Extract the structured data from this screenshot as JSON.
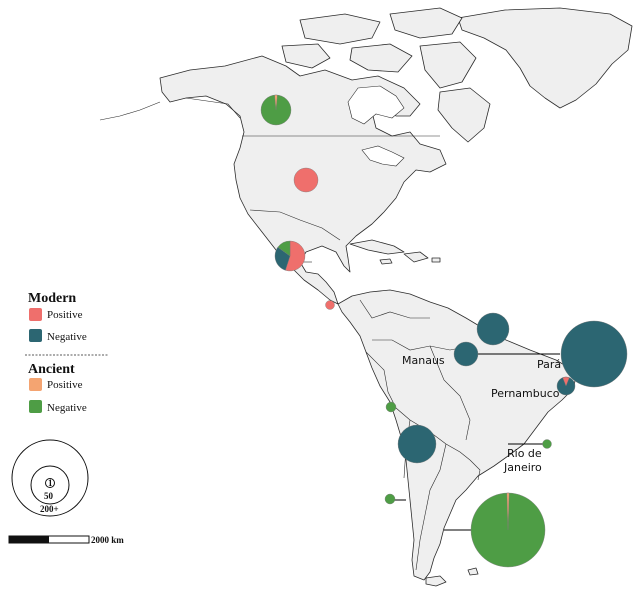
{
  "colors": {
    "modern_positive": "#ef6f6c",
    "modern_negative": "#2c6672",
    "ancient_positive": "#f4a471",
    "ancient_negative": "#4e9d45"
  },
  "legend": {
    "modern_title": "Modern",
    "modern_positive": "Positive",
    "modern_negative": "Negative",
    "ancient_title": "Ancient",
    "ancient_positive": "Positive",
    "ancient_negative": "Negative"
  },
  "size_legend": {
    "small": "1",
    "medium": "50",
    "large": "200+"
  },
  "scale_bar": {
    "label": "2000 km"
  },
  "place_labels": {
    "manaus": "Manaus",
    "para": "Pará",
    "pernambuco": "Pernambuco",
    "rio_line1": "Rio de",
    "rio_line2": "Janeiro"
  },
  "sites": [
    {
      "id": "canada",
      "positive_fraction": 0.03,
      "group": "ancient"
    },
    {
      "id": "usa",
      "positive_fraction": 1.0,
      "group": "modern"
    },
    {
      "id": "mexico-modern",
      "positive_fraction": 0.55,
      "group": "modern"
    },
    {
      "id": "mexico-ancient",
      "positive_fraction": 0.0,
      "group": "ancient"
    },
    {
      "id": "central-america",
      "positive_fraction": 1.0,
      "group": "modern"
    },
    {
      "id": "guianas",
      "positive_fraction": 0.0,
      "group": "modern"
    },
    {
      "id": "manaus",
      "positive_fraction": 0.0,
      "group": "modern"
    },
    {
      "id": "para",
      "positive_fraction": 0.0,
      "group": "modern"
    },
    {
      "id": "pernambuco",
      "positive_fraction": 0.12,
      "group": "modern"
    },
    {
      "id": "peru",
      "positive_fraction": 0.0,
      "group": "ancient"
    },
    {
      "id": "bolivia",
      "positive_fraction": 0.0,
      "group": "modern"
    },
    {
      "id": "rio-de-janeiro",
      "positive_fraction": 0.0,
      "group": "ancient"
    },
    {
      "id": "chile",
      "positive_fraction": 0.0,
      "group": "ancient"
    },
    {
      "id": "patagonia",
      "positive_fraction": 0.01,
      "group": "ancient"
    }
  ]
}
